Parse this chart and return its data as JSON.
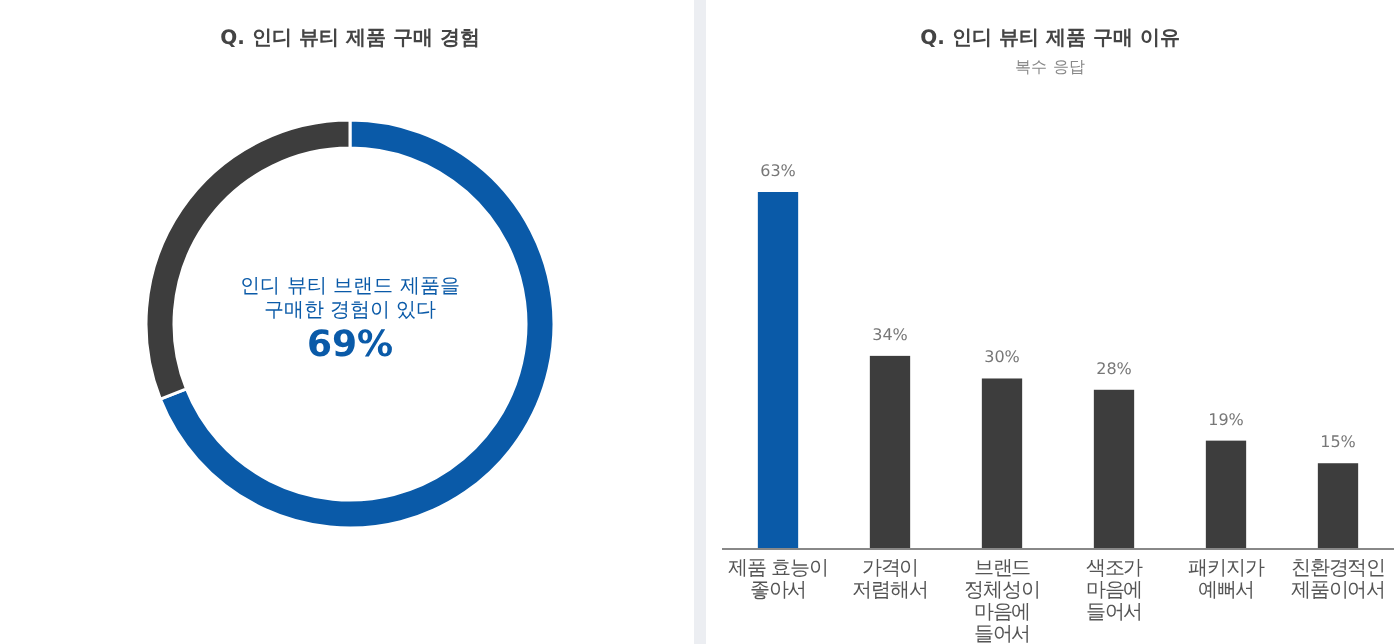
{
  "chart_data": [
    {
      "type": "donut",
      "title": "Q. 인디 뷰티 제품 구매 경험",
      "categories": [
        null,
        null
      ],
      "values": [
        69,
        31
      ],
      "colors": [
        "#0a5aa8",
        "#3d3d3d"
      ],
      "annotations": [
        "인디 뷰티 브랜드 제품을 구매한 경험이 있다",
        "69%"
      ]
    },
    {
      "type": "bar",
      "title": "Q. 인디 뷰티 제품 구매 이유",
      "subtitle": "복수 응답",
      "categories": [
        "제품 효능이 좋아서",
        "가격이 저렴해서",
        "브랜드 정체성이 마음에 들어서",
        "색조가 마음에 들어서",
        "패키지가 예뻐서",
        "친환경적인 제품이어서"
      ],
      "values": [
        63,
        34,
        30,
        28,
        19,
        15
      ],
      "colors": [
        "#0a5aa8",
        "#3d3d3d",
        "#3d3d3d",
        "#3d3d3d",
        "#3d3d3d",
        "#3d3d3d"
      ],
      "value_labels": [
        "63%",
        "34%",
        "30%",
        "28%",
        "19%",
        "15%"
      ]
    }
  ]
}
